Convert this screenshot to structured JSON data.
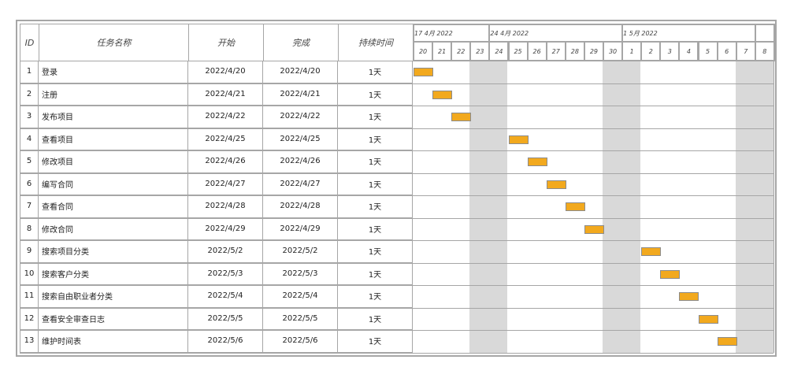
{
  "columns": {
    "id": "ID",
    "name": "任务名称",
    "start": "开始",
    "finish": "完成",
    "duration": "持续时间"
  },
  "weeks": [
    {
      "label": "17 4月 2022",
      "span": 4
    },
    {
      "label": "24 4月 2022",
      "span": 7
    },
    {
      "label": "1 5月 2022",
      "span": 7
    },
    {
      "label": "",
      "span": 1
    }
  ],
  "days": [
    "20",
    "21",
    "22",
    "23",
    "24",
    "25",
    "26",
    "27",
    "28",
    "29",
    "30",
    "1",
    "2",
    "3",
    "4",
    "5",
    "6",
    "7",
    "8"
  ],
  "weekend_day_indexes": [
    3,
    4,
    10,
    11,
    17,
    18
  ],
  "colors": {
    "bar": "#f2a91e",
    "weekend": "#d9d9d9",
    "grid": "#a6a6a6"
  },
  "tasks": [
    {
      "id": "1",
      "name": "登录",
      "start": "2022/4/20",
      "finish": "2022/4/20",
      "duration": "1天",
      "day_index": 0
    },
    {
      "id": "2",
      "name": "注册",
      "start": "2022/4/21",
      "finish": "2022/4/21",
      "duration": "1天",
      "day_index": 1
    },
    {
      "id": "3",
      "name": "发布项目",
      "start": "2022/4/22",
      "finish": "2022/4/22",
      "duration": "1天",
      "day_index": 2
    },
    {
      "id": "4",
      "name": "查看项目",
      "start": "2022/4/25",
      "finish": "2022/4/25",
      "duration": "1天",
      "day_index": 5
    },
    {
      "id": "5",
      "name": "修改项目",
      "start": "2022/4/26",
      "finish": "2022/4/26",
      "duration": "1天",
      "day_index": 6
    },
    {
      "id": "6",
      "name": "编写合同",
      "start": "2022/4/27",
      "finish": "2022/4/27",
      "duration": "1天",
      "day_index": 7
    },
    {
      "id": "7",
      "name": "查看合同",
      "start": "2022/4/28",
      "finish": "2022/4/28",
      "duration": "1天",
      "day_index": 8
    },
    {
      "id": "8",
      "name": "修改合同",
      "start": "2022/4/29",
      "finish": "2022/4/29",
      "duration": "1天",
      "day_index": 9
    },
    {
      "id": "9",
      "name": "搜索项目分类",
      "start": "2022/5/2",
      "finish": "2022/5/2",
      "duration": "1天",
      "day_index": 12
    },
    {
      "id": "10",
      "name": "搜索客户分类",
      "start": "2022/5/3",
      "finish": "2022/5/3",
      "duration": "1天",
      "day_index": 13
    },
    {
      "id": "11",
      "name": "搜索自由职业者分类",
      "start": "2022/5/4",
      "finish": "2022/5/4",
      "duration": "1天",
      "day_index": 14
    },
    {
      "id": "12",
      "name": "查看安全审查日志",
      "start": "2022/5/5",
      "finish": "2022/5/5",
      "duration": "1天",
      "day_index": 15
    },
    {
      "id": "13",
      "name": "维护时间表",
      "start": "2022/5/6",
      "finish": "2022/5/6",
      "duration": "1天",
      "day_index": 16
    }
  ]
}
